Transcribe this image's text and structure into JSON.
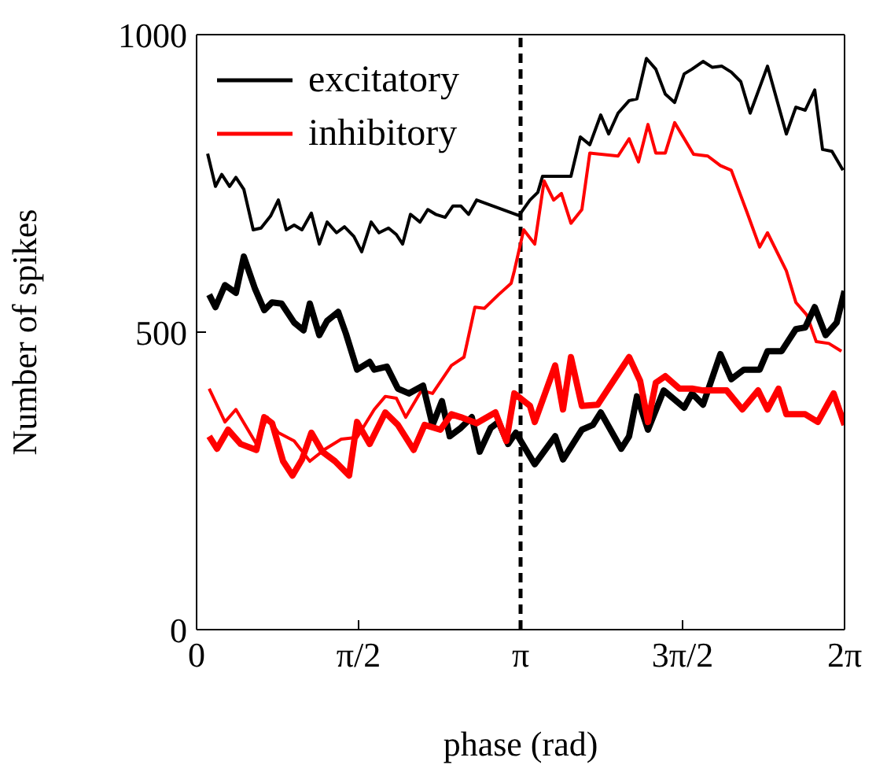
{
  "chart_data": {
    "type": "line",
    "xlabel": "phase (rad)",
    "ylabel": "Number of spikes",
    "xlim": [
      0,
      6.2832
    ],
    "ylim": [
      0,
      1000
    ],
    "xticks": [
      0,
      {
        "value": 1.5708,
        "label": "π/2"
      },
      {
        "value": 3.1416,
        "label": "π"
      },
      {
        "value": 4.7124,
        "label": "3π/2"
      },
      {
        "value": 6.2832,
        "label": "2π"
      }
    ],
    "yticks": [
      0,
      500,
      1000
    ],
    "legend": "top left",
    "marker": "none",
    "ref_lines": [
      {
        "axis": "x",
        "value": 3.1416,
        "color": "#000000",
        "line_style": "dashed"
      }
    ],
    "series": [
      {
        "name": "excitatory",
        "color": "#000000",
        "x": [
          0.107,
          0.183,
          0.244,
          0.32,
          0.381,
          0.458,
          0.549,
          0.625,
          0.717,
          0.793,
          0.869,
          0.946,
          1.022,
          1.113,
          1.19,
          1.266,
          1.357,
          1.434,
          1.525,
          1.601,
          1.693,
          1.769,
          1.861,
          1.937,
          1.998,
          2.074,
          2.166,
          2.242,
          2.318,
          2.41,
          2.486,
          2.562,
          2.638,
          2.715,
          3.126,
          3.233,
          3.309,
          3.355,
          3.63,
          3.721,
          3.813,
          3.919,
          3.996,
          4.087,
          4.194,
          4.27,
          4.362,
          4.453,
          4.545,
          4.636,
          4.728,
          4.804,
          4.911,
          5.002,
          5.094,
          5.185,
          5.277,
          5.368,
          5.536,
          5.719,
          5.811,
          5.902,
          5.994,
          6.07,
          6.161,
          6.268
        ],
        "values": [
          800,
          745,
          765,
          745,
          760,
          740,
          672,
          675,
          695,
          722,
          672,
          680,
          672,
          700,
          648,
          685,
          667,
          677,
          661,
          635,
          685,
          667,
          675,
          664,
          648,
          698,
          685,
          706,
          698,
          693,
          712,
          712,
          698,
          722,
          696,
          722,
          735,
          762,
          762,
          828,
          815,
          865,
          833,
          868,
          889,
          892,
          960,
          942,
          900,
          886,
          934,
          942,
          955,
          945,
          947,
          937,
          921,
          868,
          947,
          833,
          878,
          873,
          907,
          807,
          804,
          772
        ]
      },
      {
        "name": "inhibitory",
        "color": "#ff0000",
        "x": [
          0.122,
          0.275,
          0.381,
          0.58,
          0.686,
          0.793,
          0.946,
          1.098,
          1.251,
          1.403,
          1.556,
          1.723,
          1.83,
          1.937,
          2.028,
          2.181,
          2.288,
          2.471,
          2.593,
          2.699,
          2.791,
          2.928,
          3.05,
          3.081,
          3.172,
          3.279,
          3.37,
          3.462,
          3.538,
          3.63,
          3.736,
          3.813,
          4.087,
          4.194,
          4.285,
          4.377,
          4.453,
          4.545,
          4.636,
          4.819,
          4.957,
          5.079,
          5.185,
          5.338,
          5.46,
          5.536,
          5.719,
          5.811,
          5.917,
          6.009,
          6.131,
          6.253
        ],
        "values": [
          405,
          349,
          370,
          312,
          357,
          331,
          317,
          283,
          304,
          320,
          323,
          370,
          392,
          389,
          357,
          402,
          397,
          444,
          458,
          542,
          540,
          563,
          582,
          603,
          672,
          648,
          754,
          722,
          733,
          683,
          706,
          801,
          796,
          825,
          786,
          849,
          801,
          801,
          852,
          799,
          796,
          780,
          772,
          701,
          643,
          667,
          603,
          550,
          529,
          484,
          481,
          468
        ]
      },
      {
        "color": "#000000",
        "x": [
          0.122,
          0.183,
          0.275,
          0.381,
          0.458,
          0.564,
          0.656,
          0.732,
          0.824,
          0.946,
          1.037,
          1.098,
          1.19,
          1.266,
          1.373,
          1.449,
          1.556,
          1.678,
          1.723,
          1.845,
          1.952,
          2.059,
          2.196,
          2.288,
          2.379,
          2.455,
          2.562,
          2.669,
          2.745,
          2.852,
          2.928,
          3.02,
          3.096,
          3.233,
          3.279,
          3.477,
          3.553,
          3.736,
          3.843,
          3.919,
          4.118,
          4.194,
          4.27,
          4.377,
          4.53,
          4.728,
          4.804,
          4.911,
          5.079,
          5.185,
          5.307,
          5.46,
          5.536,
          5.673,
          5.811,
          5.902,
          5.994,
          6.1,
          6.207,
          6.283
        ],
        "values": [
          563,
          542,
          579,
          566,
          627,
          574,
          537,
          550,
          548,
          516,
          503,
          548,
          495,
          519,
          534,
          497,
          437,
          450,
          437,
          442,
          405,
          397,
          410,
          344,
          384,
          325,
          339,
          357,
          299,
          339,
          349,
          312,
          331,
          291,
          278,
          325,
          286,
          336,
          344,
          365,
          304,
          325,
          392,
          336,
          402,
          373,
          397,
          378,
          463,
          421,
          437,
          437,
          468,
          468,
          505,
          508,
          542,
          495,
          516,
          569
        ]
      },
      {
        "color": "#ff0000",
        "x": [
          0.122,
          0.198,
          0.305,
          0.427,
          0.58,
          0.656,
          0.732,
          0.839,
          0.93,
          1.022,
          1.113,
          1.22,
          1.342,
          1.479,
          1.556,
          1.678,
          1.83,
          1.952,
          2.105,
          2.211,
          2.364,
          2.471,
          2.562,
          2.715,
          2.898,
          3.004,
          3.081,
          3.233,
          3.279,
          3.477,
          3.553,
          3.63,
          3.736,
          3.889,
          4.011,
          4.194,
          4.301,
          4.377,
          4.453,
          4.545,
          4.682,
          4.804,
          4.911,
          5.14,
          5.292,
          5.445,
          5.536,
          5.643,
          5.719,
          5.902,
          6.024,
          6.177,
          6.283
        ],
        "values": [
          325,
          304,
          336,
          312,
          302,
          357,
          347,
          283,
          259,
          286,
          331,
          299,
          283,
          259,
          349,
          312,
          365,
          344,
          302,
          344,
          336,
          362,
          357,
          347,
          365,
          317,
          397,
          376,
          349,
          444,
          370,
          458,
          376,
          378,
          410,
          458,
          418,
          349,
          415,
          426,
          405,
          405,
          402,
          402,
          370,
          402,
          370,
          405,
          362,
          362,
          349,
          397,
          344
        ]
      }
    ]
  }
}
